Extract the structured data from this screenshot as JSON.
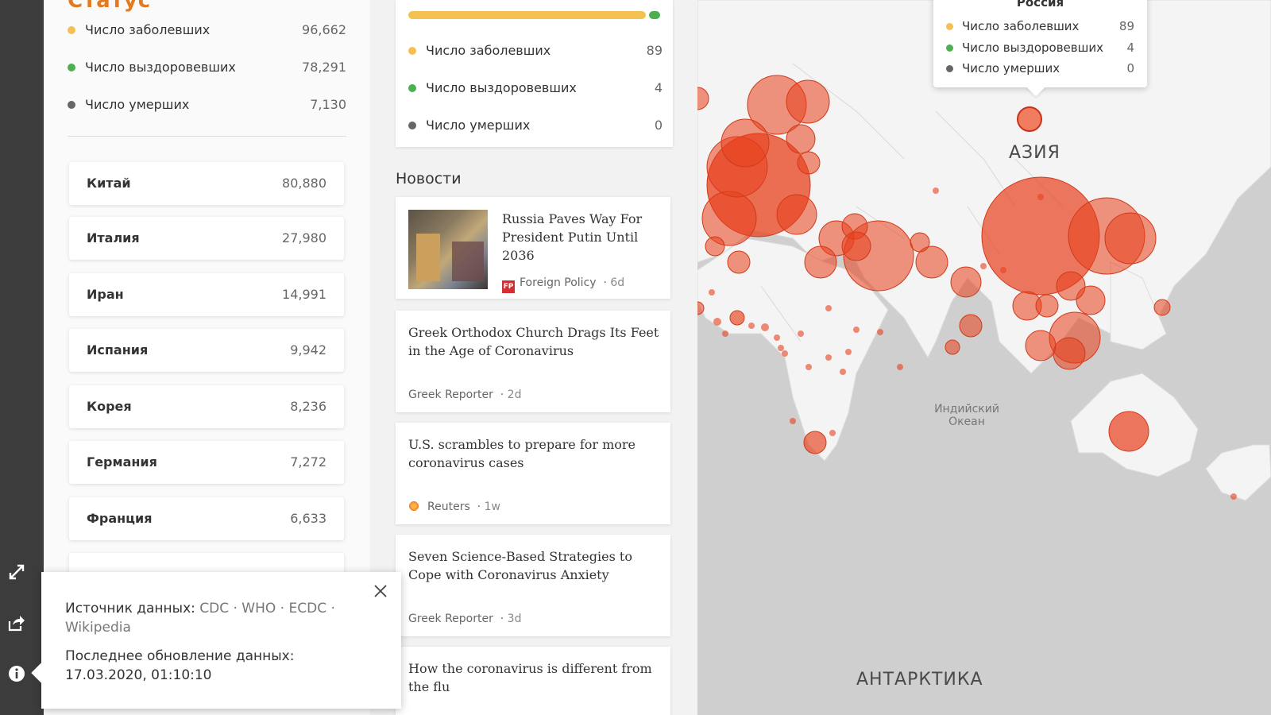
{
  "world": {
    "title_partial": "Статус",
    "stats": [
      {
        "label": "Число заболевших",
        "value": "96,662",
        "color": "#f4c051"
      },
      {
        "label": "Число выздоровевших",
        "value": "78,291",
        "color": "#4caf50"
      },
      {
        "label": "Число умерших",
        "value": "7,130",
        "color": "#666666"
      }
    ],
    "countries": [
      {
        "name": "Китай",
        "count": "80,880"
      },
      {
        "name": "Италия",
        "count": "27,980"
      },
      {
        "name": "Иран",
        "count": "14,991"
      },
      {
        "name": "Испания",
        "count": "9,942"
      },
      {
        "name": "Корея",
        "count": "8,236"
      },
      {
        "name": "Германия",
        "count": "7,272"
      },
      {
        "name": "Франция",
        "count": "6,633"
      }
    ]
  },
  "russia_card": {
    "stats": [
      {
        "label": "Число заболевших",
        "value": "89"
      },
      {
        "label": "Число выздоровевших",
        "value": "4"
      },
      {
        "label": "Число умерших",
        "value": "0"
      }
    ],
    "recovered_fraction": 0.045
  },
  "news": {
    "heading": "Новости",
    "items": [
      {
        "headline": "Russia Paves Way For President Putin Until 2036",
        "source": "Foreign Policy",
        "age": "6d",
        "has_thumb": true
      },
      {
        "headline": "Greek Orthodox Church Drags Its Feet in the Age of Coronavirus",
        "source": "Greek Reporter",
        "age": "2d"
      },
      {
        "headline": "U.S. scrambles to prepare for more coronavirus cases",
        "source": "Reuters",
        "age": "1w"
      },
      {
        "headline": "Seven Science-Based Strategies to Cope with Coronavirus Anxiety",
        "source": "Greek Reporter",
        "age": "3d"
      },
      {
        "headline": "How the coronavirus is different from the flu"
      }
    ]
  },
  "map": {
    "labels": {
      "asia": "АЗИЯ",
      "antarctica": "АНТАРКТИКА",
      "indian_ocean": "Индийский Океан"
    }
  },
  "tooltip": {
    "title": "Россия",
    "rows": [
      {
        "label": "Число заболевших",
        "value": "89"
      },
      {
        "label": "Число выздоровевших",
        "value": "4"
      },
      {
        "label": "Число умерших",
        "value": "0"
      }
    ]
  },
  "popup": {
    "source_prefix": "Источник данных:",
    "sources": "CDC · WHO · ECDC · Wikipedia",
    "updated_label": "Последнее обновление данных:",
    "updated_value": "17.03.2020, 01:10:10"
  },
  "colors": {
    "infected": "#f4c051",
    "recovered": "#4caf50",
    "dead": "#666666",
    "bubble": "#e8401c"
  }
}
